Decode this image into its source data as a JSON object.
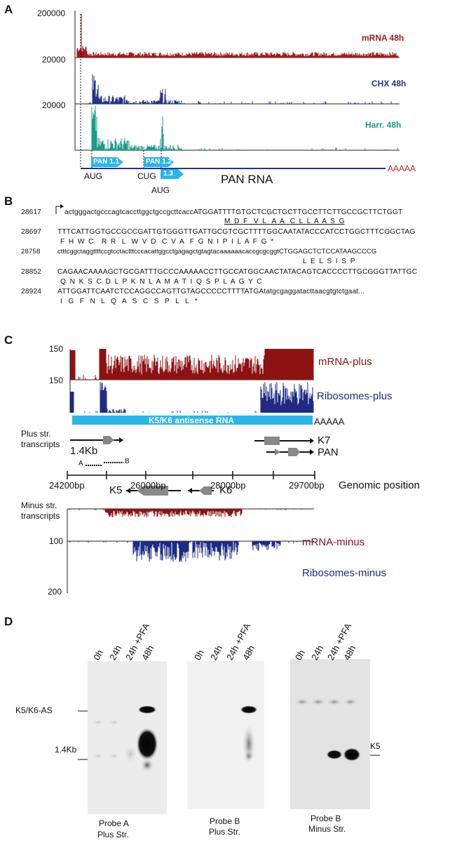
{
  "panels": {
    "A": "A",
    "B": "B",
    "C": "C",
    "D": "D"
  },
  "panelA": {
    "y_ticks": [
      "200000",
      "20000",
      "20000",
      "20000"
    ],
    "tracks": [
      {
        "label": "mRNA 48h",
        "color": "#a31a1f"
      },
      {
        "label": "CHX 48h",
        "color": "#23338a"
      },
      {
        "label": "Harr. 48h",
        "color": "#1a9b8c"
      }
    ],
    "orfs": [
      "PAN 1.1",
      "PAN 1.2",
      "1.3"
    ],
    "codons": [
      "AUG",
      "CUG",
      "AUG"
    ],
    "rna_label": "PAN RNA",
    "polyA": "AAAAA"
  },
  "panelB": {
    "lines": [
      {
        "pos": "28617",
        "seq": "actgggactgcccagtcaccttggctgccgcttcaccATGGATTTTGTGCTCGCTGCTTGCCTTCTTGCCGCTTCTGGT",
        "aa": "M  D  F   V  L   A  A   C  L  L  A  A  S  G"
      },
      {
        "pos": "28697",
        "seq": "TTTCATTGGTGCCGCCGATTGTGGGTTGATTGCGTCGCTTTTGGCAATATACCCATCCTGGCTTTCGGCTAG",
        "aa": "F  H  W  C    R  R   L   W  V  D   C  V  A   F  G  N  I  P  I  L  A  F  G  *"
      },
      {
        "pos": "28758",
        "seq": "ctttcggctaggttttccgtcctactttcccacattggcctgagagctgtagtacaaaaaacaccgcgcggtCTGGAGCTCTCCATAAGCCCG",
        "aa": "L  E  L  S  I  S  P"
      },
      {
        "pos": "28852",
        "seq": "CAGAACAAAAGCTGCGATTTGCCCAAAAACCTTGCCATGGCAACTATACAGTCACCCCTTGCGGGTTATTGC",
        "aa": "Q  N  K  S  C  D  L  P  K  N  L  A  M  A  T  I  Q  S  P  L  A  G  Y  C"
      },
      {
        "pos": "28924",
        "seq": "ATTGGATTCAATCTCCAGGCCAGTTGTAGCCCCCTTTTATGAtatgcgaggatacttaacgtgtctgaat...",
        "aa": "I   G   F   N   L   Q   A   S   C   S   P   L   L   *"
      }
    ]
  },
  "panelC": {
    "plus_scale": [
      "150",
      "150"
    ],
    "tracks": [
      {
        "label": "mRNA-plus",
        "color": "#8e1113"
      },
      {
        "label": "Ribosomes-plus",
        "color": "#1e2a86"
      },
      {
        "label": "mRNA-minus",
        "color": "#8e1113"
      },
      {
        "label": "Ribosomes-minus",
        "color": "#1e2a86"
      }
    ],
    "antisense_label": "K5/K6 antisense RNA",
    "polyA": "AAAAA",
    "plus_str": "Plus str.\ntranscripts",
    "minus_str": "Minus str.\ntranscripts",
    "transcripts": {
      "t14": "1.4Kb",
      "k7": "K7",
      "pan": "PAN",
      "k5": "K5",
      "k6": "K6"
    },
    "probes": {
      "a": "A",
      "b": "B"
    },
    "axis_ticks": [
      "24200bp",
      "26000bp",
      "28000bp",
      "29700bp"
    ],
    "axis_title": "Genomic position",
    "minus_ticks": [
      "100",
      "200"
    ]
  },
  "panelD": {
    "lanes": [
      "0h",
      "24h",
      "24h +PFA",
      "48h"
    ],
    "left_markers": [
      "K5/K6-AS",
      "1.4Kb"
    ],
    "right_marker": "K5",
    "captions": [
      {
        "l1": "Probe A",
        "l2": "Plus Str."
      },
      {
        "l1": "Probe B",
        "l2": "Plus Str."
      },
      {
        "l1": "Probe B",
        "l2": "Minus Str."
      }
    ]
  },
  "colors": {
    "mrna": "#a31a1f",
    "chx": "#23338a",
    "harr": "#1a9b8c",
    "orf": "#29b6e8",
    "pan_line": "#23338a",
    "polyA": "#c8202a"
  }
}
